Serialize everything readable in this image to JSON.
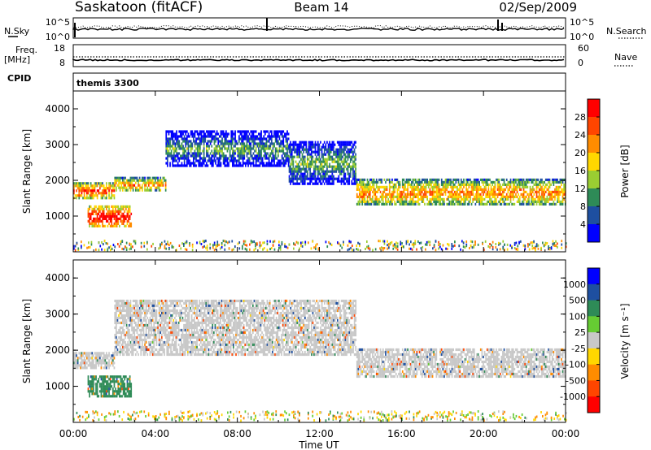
{
  "header": {
    "station": "Saskatoon (fitACF)",
    "beam": "Beam 14",
    "date": "02/Sep/2009"
  },
  "status_panel": {
    "nsky_label": "N.Sky",
    "nsky_ticks": [
      "10^5",
      "10^0"
    ],
    "nsearch_label": "N.Search",
    "freq_label": "Freq.",
    "freq_unit": "[MHz]",
    "freq_ticks": [
      "18",
      "8"
    ],
    "nave_label": "Nave",
    "nave_ticks": [
      "60",
      "0"
    ],
    "cpid_label": "CPID",
    "cpid_value": "themis 3300"
  },
  "chart_data": [
    {
      "type": "heatmap",
      "name": "power",
      "ylabel": "Slant Range [km]",
      "ylim": [
        0,
        4500
      ],
      "yticks": [
        1000,
        2000,
        3000,
        4000
      ],
      "x_tick_hours": [
        0,
        4,
        8,
        12,
        16,
        20,
        24
      ],
      "colorbar_label": "Power [dB]",
      "colorbar_ticks": [
        "28",
        "24",
        "20",
        "16",
        "12",
        "8",
        "4"
      ],
      "colorbar_colors": [
        "#ff0000",
        "#ff4500",
        "#ff8c00",
        "#ffd700",
        "#9acd32",
        "#2e8b57",
        "#1e4fa0",
        "#0000ff"
      ],
      "bands_dB": [
        {
          "t": [
            0.0,
            2.0
          ],
          "r": [
            1500,
            1950
          ],
          "level": 22
        },
        {
          "t": [
            0.7,
            2.8
          ],
          "r": [
            700,
            1300
          ],
          "level": 26
        },
        {
          "t": [
            2.0,
            4.5
          ],
          "r": [
            1700,
            2100
          ],
          "level": 18
        },
        {
          "t": [
            4.5,
            10.5
          ],
          "r": [
            2400,
            3400
          ],
          "level": 6
        },
        {
          "t": [
            10.5,
            13.8
          ],
          "r": [
            1900,
            3100
          ],
          "level": 8
        },
        {
          "t": [
            13.8,
            24.0
          ],
          "r": [
            1300,
            2050
          ],
          "level": 18
        }
      ]
    },
    {
      "type": "heatmap",
      "name": "velocity",
      "ylabel": "Slant Range [km]",
      "ylim": [
        0,
        4500
      ],
      "yticks": [
        1000,
        2000,
        3000,
        4000
      ],
      "x_tick_hours": [
        0,
        4,
        8,
        12,
        16,
        20,
        24
      ],
      "colorbar_label": "Velocity [m s⁻¹]",
      "colorbar_ticks": [
        "1000",
        "500",
        "100",
        "25",
        "-25",
        "-100",
        "-500",
        "-1000"
      ],
      "colorbar_colors": [
        "#0000ff",
        "#1e4fa0",
        "#2e8b57",
        "#66cc33",
        "#c8c8c8",
        "#ffd700",
        "#ff8c00",
        "#ff4500",
        "#ff0000"
      ],
      "bands_ms": [
        {
          "t": [
            0.0,
            2.0
          ],
          "r": [
            1500,
            1950
          ],
          "level": 0
        },
        {
          "t": [
            0.7,
            2.8
          ],
          "r": [
            700,
            1300
          ],
          "level": 150
        },
        {
          "t": [
            2.0,
            13.8
          ],
          "r": [
            1900,
            3400
          ],
          "level": 0
        },
        {
          "t": [
            13.8,
            24.0
          ],
          "r": [
            1300,
            2050
          ],
          "level": 0
        }
      ]
    }
  ],
  "x_axis": {
    "label": "Time UT",
    "ticks": [
      "00:00",
      "04:00",
      "08:00",
      "12:00",
      "16:00",
      "20:00",
      "00:00"
    ]
  }
}
